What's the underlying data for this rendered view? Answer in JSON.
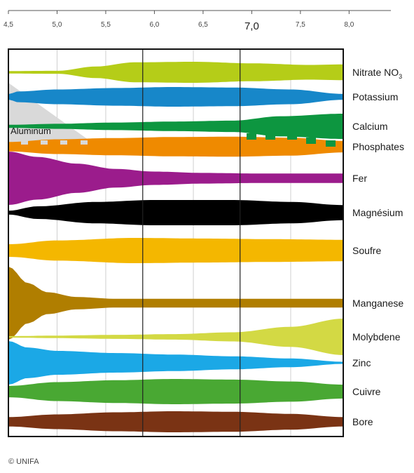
{
  "scale": {
    "ph_min": 4.5,
    "ph_max": 8.0,
    "ticks": [
      {
        "value": 4.5,
        "label": "4,5"
      },
      {
        "value": 5.0,
        "label": "5,0"
      },
      {
        "value": 5.5,
        "label": "5,5"
      },
      {
        "value": 6.0,
        "label": "6,0"
      },
      {
        "value": 6.5,
        "label": "6,5"
      },
      {
        "value": 7.0,
        "label": "7,0",
        "major": true
      },
      {
        "value": 7.5,
        "label": "7,5"
      },
      {
        "value": 8.0,
        "label": "8,0"
      }
    ],
    "frame_ph_max": 7.94,
    "dark_lines": [
      5.88,
      6.88
    ],
    "light_lines": [
      5.0,
      5.5,
      6.4,
      7.4
    ]
  },
  "aluminum": {
    "label": "Aluminum",
    "color": "#d9d9d9",
    "ph_end": 5.4
  },
  "bands": [
    {
      "name": "Nitrate NO",
      "sub": "3",
      "color": "#b5cd18",
      "profile": [
        [
          4.5,
          0.12
        ],
        [
          5.0,
          0.14
        ],
        [
          5.4,
          0.55
        ],
        [
          5.8,
          0.95
        ],
        [
          6.4,
          1.0
        ],
        [
          7.0,
          0.85
        ],
        [
          7.6,
          0.7
        ],
        [
          7.94,
          0.75
        ]
      ]
    },
    {
      "name": "Potassium",
      "sub": "",
      "color": "#1787c9",
      "profile": [
        [
          4.5,
          0.28
        ],
        [
          4.6,
          0.55
        ],
        [
          5.0,
          0.75
        ],
        [
          5.6,
          0.9
        ],
        [
          6.2,
          1.0
        ],
        [
          6.8,
          0.95
        ],
        [
          7.4,
          0.75
        ],
        [
          7.94,
          0.3
        ]
      ]
    },
    {
      "name": "Calcium",
      "sub": "",
      "color": "#0d9640",
      "profile": [
        [
          4.5,
          0.12
        ],
        [
          5.0,
          0.2
        ],
        [
          5.6,
          0.3
        ],
        [
          6.2,
          0.38
        ],
        [
          6.8,
          0.45
        ],
        [
          7.3,
          0.8
        ],
        [
          7.94,
          1.0
        ]
      ]
    },
    {
      "name": "Phosphates",
      "sub": "",
      "color": "#ef8a00",
      "profile": [
        [
          4.5,
          0.45
        ],
        [
          5.0,
          0.7
        ],
        [
          5.6,
          0.82
        ],
        [
          6.2,
          0.92
        ],
        [
          6.8,
          0.95
        ],
        [
          7.4,
          0.85
        ],
        [
          7.94,
          0.55
        ]
      ]
    },
    {
      "name": "Fer",
      "sub": "",
      "color": "#9b1c8c",
      "profile": [
        [
          4.5,
          1.0
        ],
        [
          4.8,
          0.8
        ],
        [
          5.2,
          0.55
        ],
        [
          5.6,
          0.35
        ],
        [
          6.0,
          0.25
        ],
        [
          6.5,
          0.2
        ],
        [
          7.0,
          0.18
        ],
        [
          7.94,
          0.18
        ]
      ]
    },
    {
      "name": "Magnésium",
      "sub": "",
      "color": "#000000",
      "profile": [
        [
          4.5,
          0.15
        ],
        [
          4.8,
          0.5
        ],
        [
          5.4,
          0.85
        ],
        [
          6.0,
          1.0
        ],
        [
          6.8,
          1.0
        ],
        [
          7.4,
          0.85
        ],
        [
          7.94,
          0.6
        ]
      ]
    },
    {
      "name": "Soufre",
      "sub": "",
      "color": "#f4b700",
      "profile": [
        [
          4.5,
          0.5
        ],
        [
          5.0,
          0.8
        ],
        [
          5.8,
          1.0
        ],
        [
          6.5,
          0.95
        ],
        [
          7.2,
          0.9
        ],
        [
          7.94,
          0.85
        ]
      ]
    },
    {
      "name": "Manganese",
      "sub": "",
      "color": "#b07e00",
      "profile": [
        [
          4.5,
          1.0
        ],
        [
          4.7,
          0.55
        ],
        [
          4.9,
          0.3
        ],
        [
          5.2,
          0.17
        ],
        [
          5.6,
          0.12
        ],
        [
          6.2,
          0.12
        ],
        [
          7.0,
          0.12
        ],
        [
          7.94,
          0.12
        ]
      ]
    },
    {
      "name": "Molybdene",
      "sub": "",
      "color": "#d3d944",
      "profile": [
        [
          4.5,
          0.04
        ],
        [
          5.0,
          0.07
        ],
        [
          5.6,
          0.11
        ],
        [
          6.2,
          0.15
        ],
        [
          6.8,
          0.25
        ],
        [
          7.4,
          0.55
        ],
        [
          7.94,
          1.0
        ]
      ]
    },
    {
      "name": "Zinc",
      "sub": "",
      "color": "#1ba8e6",
      "profile": [
        [
          4.5,
          1.0
        ],
        [
          4.7,
          0.7
        ],
        [
          5.0,
          0.55
        ],
        [
          5.6,
          0.45
        ],
        [
          6.2,
          0.38
        ],
        [
          6.8,
          0.3
        ],
        [
          7.4,
          0.2
        ],
        [
          7.94,
          0.05
        ]
      ]
    },
    {
      "name": "Cuivre",
      "sub": "",
      "color": "#49a833",
      "profile": [
        [
          4.5,
          0.45
        ],
        [
          5.0,
          0.75
        ],
        [
          5.6,
          0.9
        ],
        [
          6.2,
          1.0
        ],
        [
          6.8,
          0.95
        ],
        [
          7.4,
          0.8
        ],
        [
          7.94,
          0.55
        ]
      ]
    },
    {
      "name": "Bore",
      "sub": "",
      "color": "#7a3314",
      "profile": [
        [
          4.5,
          0.45
        ],
        [
          5.0,
          0.7
        ],
        [
          5.6,
          0.9
        ],
        [
          6.2,
          1.0
        ],
        [
          6.8,
          0.95
        ],
        [
          7.4,
          0.75
        ],
        [
          7.94,
          0.45
        ]
      ]
    }
  ],
  "credit": "© UNIFA"
}
